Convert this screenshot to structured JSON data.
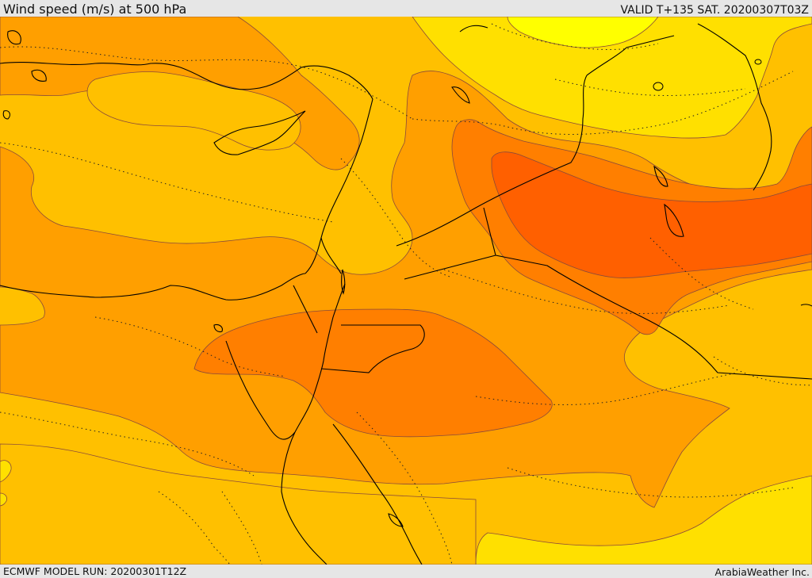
{
  "header": {
    "title": "Wind speed (m/s) at 500 hPa",
    "valid": "VALID T+135 SAT. 20200307T03Z"
  },
  "footer": {
    "model_run": "ECMWF MODEL RUN: 20200301T12Z",
    "credit": "ArabiaWeather Inc."
  },
  "map": {
    "field": "wind speed at 500 hPa",
    "colors": {
      "band_18_21": "#ffff00",
      "band_21_24": "#ffe000",
      "band_24_27": "#ffc000",
      "band_27_30": "#ff9f00",
      "band_30_33": "#ff7f00",
      "band_33_36": "#ff6000",
      "contour": "#8a4a3a",
      "coast": "#000000"
    }
  }
}
